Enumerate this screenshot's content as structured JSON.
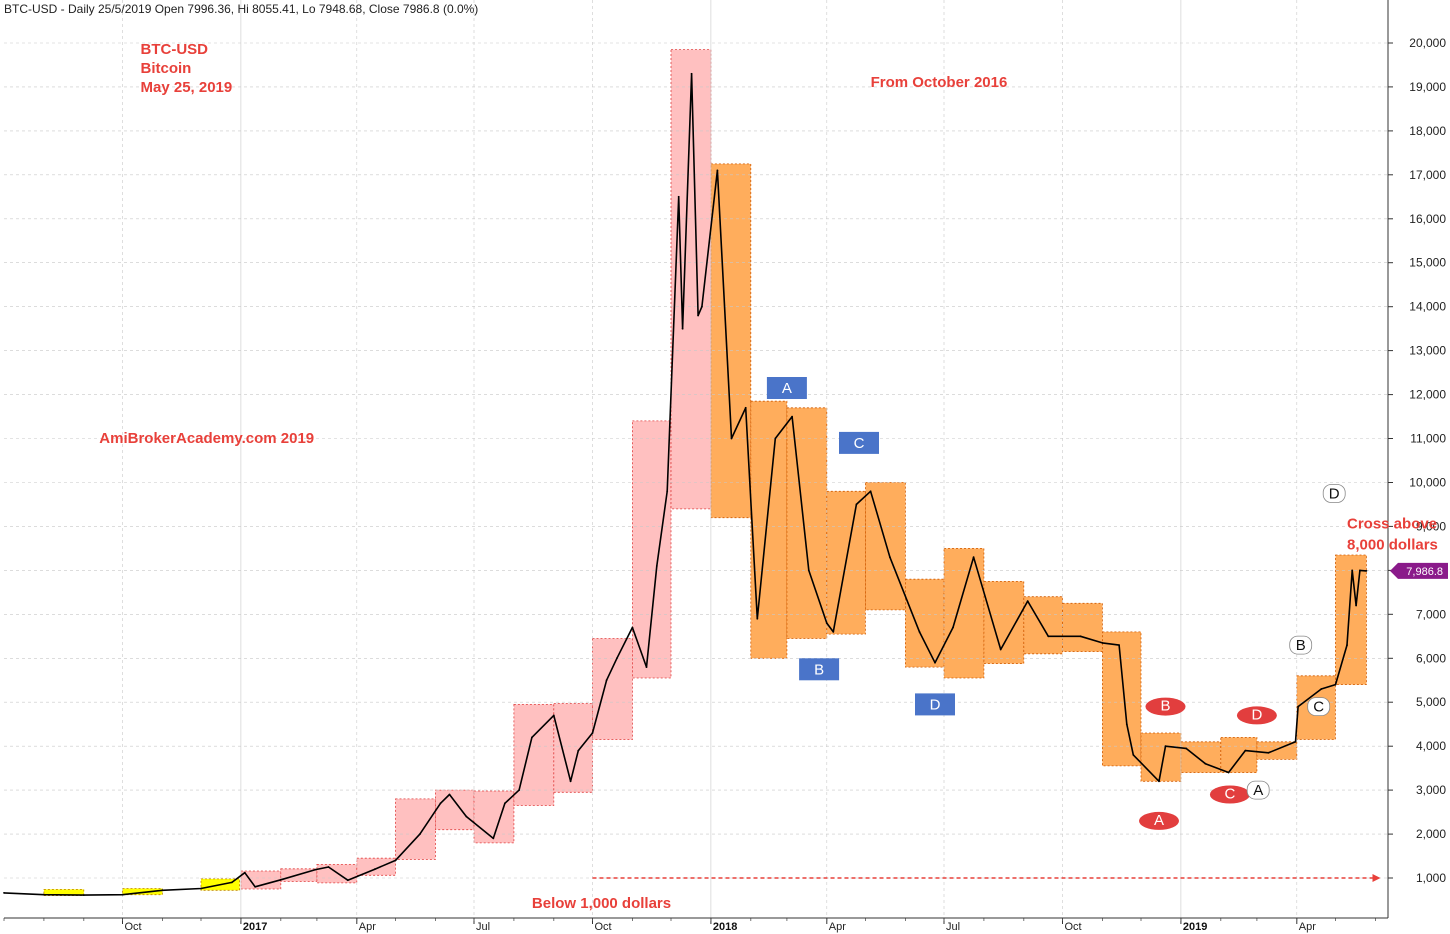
{
  "header": "BTC-USD - Daily 25/5/2019 Open 7996.36, Hi 8055.41, Lo 7948.68, Close 7986.8 (0.0%)",
  "chart_data": {
    "type": "line",
    "title_lines": [
      "BTC-USD",
      "Bitcoin",
      "May 25, 2019"
    ],
    "xlabel": "",
    "ylabel": "",
    "ylim": [
      0,
      20500
    ],
    "y_ticks": [
      "1,000",
      "2,000",
      "3,000",
      "4,000",
      "5,000",
      "6,000",
      "7,000",
      "8,000",
      "9,000",
      "10,000",
      "11,000",
      "12,000",
      "13,000",
      "14,000",
      "15,000",
      "16,000",
      "17,000",
      "18,000",
      "19,000",
      "20,000"
    ],
    "y_tick_values": [
      1000,
      2000,
      3000,
      4000,
      5000,
      6000,
      7000,
      8000,
      9000,
      10000,
      11000,
      12000,
      13000,
      14000,
      15000,
      16000,
      17000,
      18000,
      19000,
      20000
    ],
    "x_range": [
      "2016-07-01",
      "2019-06-10"
    ],
    "x_ticks": [
      {
        "date": "2016-10-01",
        "label": "Oct",
        "year": false
      },
      {
        "date": "2017-01-01",
        "label": "2017",
        "year": true
      },
      {
        "date": "2017-04-01",
        "label": "Apr",
        "year": false
      },
      {
        "date": "2017-07-01",
        "label": "Jul",
        "year": false
      },
      {
        "date": "2017-10-01",
        "label": "Oct",
        "year": false
      },
      {
        "date": "2018-01-01",
        "label": "2018",
        "year": true
      },
      {
        "date": "2018-04-01",
        "label": "Apr",
        "year": false
      },
      {
        "date": "2018-07-01",
        "label": "Jul",
        "year": false
      },
      {
        "date": "2018-10-01",
        "label": "Oct",
        "year": false
      },
      {
        "date": "2019-01-01",
        "label": "2019",
        "year": true
      },
      {
        "date": "2019-04-01",
        "label": "Apr",
        "year": false
      }
    ],
    "grid": true,
    "series": [
      {
        "name": "",
        "color": "#000000",
        "points": [
          [
            "2016-07-01",
            660
          ],
          [
            "2016-08-01",
            620
          ],
          [
            "2016-09-01",
            610
          ],
          [
            "2016-10-01",
            620
          ],
          [
            "2016-11-01",
            720
          ],
          [
            "2016-12-01",
            760
          ],
          [
            "2016-12-25",
            900
          ],
          [
            "2017-01-04",
            1120
          ],
          [
            "2017-01-12",
            800
          ],
          [
            "2017-02-01",
            960
          ],
          [
            "2017-02-28",
            1190
          ],
          [
            "2017-03-10",
            1250
          ],
          [
            "2017-03-25",
            950
          ],
          [
            "2017-04-15",
            1200
          ],
          [
            "2017-05-01",
            1400
          ],
          [
            "2017-05-20",
            2000
          ],
          [
            "2017-06-05",
            2700
          ],
          [
            "2017-06-12",
            2900
          ],
          [
            "2017-06-25",
            2400
          ],
          [
            "2017-07-16",
            1900
          ],
          [
            "2017-07-25",
            2700
          ],
          [
            "2017-08-05",
            3000
          ],
          [
            "2017-08-15",
            4200
          ],
          [
            "2017-09-01",
            4700
          ],
          [
            "2017-09-14",
            3200
          ],
          [
            "2017-09-20",
            3900
          ],
          [
            "2017-10-01",
            4300
          ],
          [
            "2017-10-12",
            5500
          ],
          [
            "2017-10-20",
            6000
          ],
          [
            "2017-11-01",
            6700
          ],
          [
            "2017-11-12",
            5800
          ],
          [
            "2017-11-20",
            8100
          ],
          [
            "2017-11-28",
            9800
          ],
          [
            "2017-12-07",
            16500
          ],
          [
            "2017-12-10",
            13500
          ],
          [
            "2017-12-17",
            19300
          ],
          [
            "2017-12-22",
            13800
          ],
          [
            "2017-12-25",
            14000
          ],
          [
            "2018-01-06",
            17100
          ],
          [
            "2018-01-17",
            11000
          ],
          [
            "2018-01-28",
            11700
          ],
          [
            "2018-02-06",
            6900
          ],
          [
            "2018-02-20",
            11000
          ],
          [
            "2018-03-05",
            11500
          ],
          [
            "2018-03-18",
            8000
          ],
          [
            "2018-04-01",
            6800
          ],
          [
            "2018-04-06",
            6600
          ],
          [
            "2018-04-24",
            9500
          ],
          [
            "2018-05-05",
            9800
          ],
          [
            "2018-05-20",
            8300
          ],
          [
            "2018-06-12",
            6600
          ],
          [
            "2018-06-24",
            5900
          ],
          [
            "2018-07-08",
            6700
          ],
          [
            "2018-07-24",
            8300
          ],
          [
            "2018-08-14",
            6200
          ],
          [
            "2018-09-04",
            7300
          ],
          [
            "2018-09-20",
            6500
          ],
          [
            "2018-10-15",
            6500
          ],
          [
            "2018-11-01",
            6350
          ],
          [
            "2018-11-14",
            6300
          ],
          [
            "2018-11-20",
            4500
          ],
          [
            "2018-11-25",
            3800
          ],
          [
            "2018-12-15",
            3200
          ],
          [
            "2018-12-20",
            4000
          ],
          [
            "2019-01-05",
            3950
          ],
          [
            "2019-01-20",
            3600
          ],
          [
            "2019-02-07",
            3400
          ],
          [
            "2019-02-20",
            3900
          ],
          [
            "2019-03-10",
            3850
          ],
          [
            "2019-03-31",
            4100
          ],
          [
            "2019-04-02",
            4900
          ],
          [
            "2019-04-20",
            5300
          ],
          [
            "2019-05-01",
            5400
          ],
          [
            "2019-05-10",
            6300
          ],
          [
            "2019-05-14",
            8000
          ],
          [
            "2019-05-17",
            7200
          ],
          [
            "2019-05-20",
            8000
          ],
          [
            "2019-05-25",
            7987
          ]
        ]
      }
    ],
    "last_value_label": "7,986.8",
    "last_value": 7987,
    "boxes": [
      {
        "from": "2016-08-01",
        "to": "2016-09-01",
        "lo": 600,
        "hi": 740,
        "color": "yellow"
      },
      {
        "from": "2016-10-01",
        "to": "2016-11-01",
        "lo": 620,
        "hi": 760,
        "color": "yellow"
      },
      {
        "from": "2016-12-01",
        "to": "2016-12-31",
        "lo": 720,
        "hi": 980,
        "color": "yellow"
      },
      {
        "from": "2017-01-01",
        "to": "2017-02-01",
        "lo": 750,
        "hi": 1160,
        "color": "pink"
      },
      {
        "from": "2017-02-01",
        "to": "2017-03-01",
        "lo": 920,
        "hi": 1210,
        "color": "pink"
      },
      {
        "from": "2017-03-01",
        "to": "2017-04-01",
        "lo": 890,
        "hi": 1310,
        "color": "pink"
      },
      {
        "from": "2017-04-01",
        "to": "2017-05-01",
        "lo": 1060,
        "hi": 1450,
        "color": "pink"
      },
      {
        "from": "2017-05-01",
        "to": "2017-06-01",
        "lo": 1420,
        "hi": 2800,
        "color": "pink"
      },
      {
        "from": "2017-06-01",
        "to": "2017-07-01",
        "lo": 2100,
        "hi": 3000,
        "color": "pink"
      },
      {
        "from": "2017-07-01",
        "to": "2017-08-01",
        "lo": 1800,
        "hi": 2980,
        "color": "pink"
      },
      {
        "from": "2017-08-01",
        "to": "2017-09-01",
        "lo": 2650,
        "hi": 4950,
        "color": "pink"
      },
      {
        "from": "2017-09-01",
        "to": "2017-10-01",
        "lo": 2950,
        "hi": 4970,
        "color": "pink"
      },
      {
        "from": "2017-10-01",
        "to": "2017-11-01",
        "lo": 4150,
        "hi": 6450,
        "color": "pink"
      },
      {
        "from": "2017-11-01",
        "to": "2017-12-01",
        "lo": 5550,
        "hi": 11400,
        "color": "pink"
      },
      {
        "from": "2017-12-01",
        "to": "2018-01-01",
        "lo": 9400,
        "hi": 19850,
        "color": "pink"
      },
      {
        "from": "2018-01-01",
        "to": "2018-02-01",
        "lo": 9200,
        "hi": 17250,
        "color": "orange"
      },
      {
        "from": "2018-02-01",
        "to": "2018-03-01",
        "lo": 6000,
        "hi": 11850,
        "color": "orange"
      },
      {
        "from": "2018-03-01",
        "to": "2018-04-01",
        "lo": 6450,
        "hi": 11700,
        "color": "orange"
      },
      {
        "from": "2018-04-01",
        "to": "2018-05-01",
        "lo": 6550,
        "hi": 9800,
        "color": "orange"
      },
      {
        "from": "2018-05-01",
        "to": "2018-06-01",
        "lo": 7100,
        "hi": 10000,
        "color": "orange"
      },
      {
        "from": "2018-06-01",
        "to": "2018-07-01",
        "lo": 5800,
        "hi": 7800,
        "color": "orange"
      },
      {
        "from": "2018-07-01",
        "to": "2018-08-01",
        "lo": 5550,
        "hi": 8500,
        "color": "orange"
      },
      {
        "from": "2018-08-01",
        "to": "2018-09-01",
        "lo": 5880,
        "hi": 7750,
        "color": "orange"
      },
      {
        "from": "2018-09-01",
        "to": "2018-10-01",
        "lo": 6100,
        "hi": 7400,
        "color": "orange"
      },
      {
        "from": "2018-10-01",
        "to": "2018-11-01",
        "lo": 6150,
        "hi": 7250,
        "color": "orange"
      },
      {
        "from": "2018-11-01",
        "to": "2018-12-01",
        "lo": 3550,
        "hi": 6600,
        "color": "orange"
      },
      {
        "from": "2018-12-01",
        "to": "2019-01-01",
        "lo": 3200,
        "hi": 4300,
        "color": "orange"
      },
      {
        "from": "2019-01-01",
        "to": "2019-02-01",
        "lo": 3400,
        "hi": 4100,
        "color": "orange"
      },
      {
        "from": "2019-02-01",
        "to": "2019-03-01",
        "lo": 3400,
        "hi": 4200,
        "color": "orange"
      },
      {
        "from": "2019-03-01",
        "to": "2019-04-01",
        "lo": 3700,
        "hi": 4100,
        "color": "orange"
      },
      {
        "from": "2019-04-01",
        "to": "2019-05-01",
        "lo": 4150,
        "hi": 5600,
        "color": "orange"
      },
      {
        "from": "2019-05-01",
        "to": "2019-05-25",
        "lo": 5400,
        "hi": 8350,
        "color": "orange"
      }
    ],
    "box_colors": {
      "yellow": {
        "fill": "#ffff00",
        "stroke": "#c08000"
      },
      "pink": {
        "fill": "#ffc0c0",
        "stroke": "#e04040"
      },
      "orange": {
        "fill": "#ffad5c",
        "stroke": "#d05a00"
      }
    },
    "threshold": {
      "value": 1000,
      "from": "2017-10-01",
      "to": "2019-06-05",
      "color": "#e8403a"
    },
    "labels_blue": [
      {
        "text": "A",
        "x": "2018-03-01",
        "y": 12150
      },
      {
        "text": "B",
        "x": "2018-03-26",
        "y": 5750
      },
      {
        "text": "C",
        "x": "2018-04-26",
        "y": 10900
      },
      {
        "text": "D",
        "x": "2018-06-24",
        "y": 4950
      }
    ],
    "labels_red": [
      {
        "text": "A",
        "x": "2018-12-15",
        "y": 2300
      },
      {
        "text": "B",
        "x": "2018-12-20",
        "y": 4900
      },
      {
        "text": "C",
        "x": "2019-02-08",
        "y": 2900
      },
      {
        "text": "D",
        "x": "2019-03-01",
        "y": 4700
      }
    ],
    "labels_white": [
      {
        "text": "A",
        "x": "2019-03-02",
        "y": 3000
      },
      {
        "text": "B",
        "x": "2019-04-04",
        "y": 6300
      },
      {
        "text": "C",
        "x": "2019-04-18",
        "y": 4900
      },
      {
        "text": "D",
        "x": "2019-04-30",
        "y": 9750
      }
    ],
    "annotations": [
      {
        "id": "title-1",
        "text": "BTC-USD",
        "x": "2016-10-15",
        "y": 19750
      },
      {
        "id": "title-2",
        "text": "Bitcoin",
        "x": "2016-10-15",
        "y": 19320
      },
      {
        "id": "title-3",
        "text": "May 25, 2019",
        "x": "2016-10-15",
        "y": 18890
      },
      {
        "id": "from-oct",
        "text": "From October 2016",
        "x": "2018-05-05",
        "y": 19000
      },
      {
        "id": "site",
        "text": "AmiBrokerAcademy.com   2019",
        "x": "2016-09-13",
        "y": 10900
      },
      {
        "id": "below",
        "text": "Below 1,000 dollars",
        "x": "2017-08-15",
        "y": 320
      },
      {
        "id": "cross-1",
        "text": "Cross above",
        "x": "2019-05-10",
        "y": 8950
      },
      {
        "id": "cross-2",
        "text": "8,000 dollars",
        "x": "2019-05-10",
        "y": 8480
      }
    ]
  }
}
